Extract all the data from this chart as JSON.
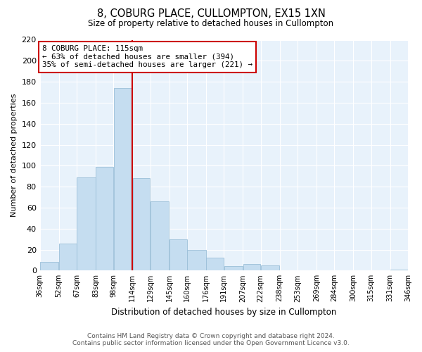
{
  "title": "8, COBURG PLACE, CULLOMPTON, EX15 1XN",
  "subtitle": "Size of property relative to detached houses in Cullompton",
  "xlabel": "Distribution of detached houses by size in Cullompton",
  "ylabel": "Number of detached properties",
  "bar_color": "#c5ddf0",
  "bar_edge_color": "#9bbfd8",
  "background_color": "#ffffff",
  "plot_bg_color": "#e8f2fb",
  "grid_color": "#ffffff",
  "annotation_box_edge": "#cc0000",
  "annotation_line_color": "#cc0000",
  "annotation_title": "8 COBURG PLACE: 115sqm",
  "annotation_line1": "← 63% of detached houses are smaller (394)",
  "annotation_line2": "35% of semi-detached houses are larger (221) →",
  "reference_line_x": 114,
  "footer_line1": "Contains HM Land Registry data © Crown copyright and database right 2024.",
  "footer_line2": "Contains public sector information licensed under the Open Government Licence v3.0.",
  "bin_edges": [
    36,
    52,
    67,
    83,
    98,
    114,
    129,
    145,
    160,
    176,
    191,
    207,
    222,
    238,
    253,
    269,
    284,
    300,
    315,
    331,
    346
  ],
  "bin_counts": [
    8,
    26,
    89,
    99,
    174,
    88,
    66,
    30,
    20,
    12,
    4,
    6,
    5,
    0,
    0,
    0,
    0,
    0,
    0,
    1
  ],
  "ylim": [
    0,
    220
  ],
  "yticks": [
    0,
    20,
    40,
    60,
    80,
    100,
    120,
    140,
    160,
    180,
    200,
    220
  ]
}
